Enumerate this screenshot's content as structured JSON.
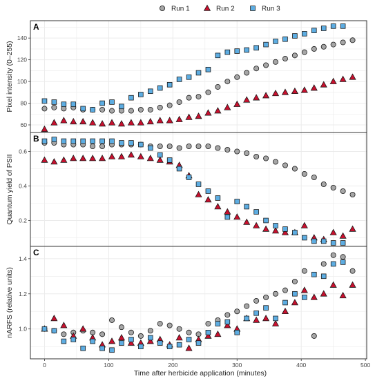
{
  "chart_data": {
    "type": "scatter",
    "xlabel": "Time after herbicide application (minutes)",
    "xlim": [
      -22,
      502
    ],
    "xticks": [
      0,
      100,
      200,
      300,
      400,
      500
    ],
    "legend": {
      "position": "top",
      "entries": [
        {
          "name": "Run 1",
          "color": "#a6a6a6",
          "marker": "circle"
        },
        {
          "name": "Run 2",
          "color": "#c8102e",
          "marker": "triangle"
        },
        {
          "name": "Run 3",
          "color": "#5dade2",
          "marker": "square"
        }
      ]
    },
    "panels": [
      {
        "letter": "A",
        "ylabel": "Pixel intensity  (0–255)",
        "ylim": [
          53,
          156
        ],
        "yticks": [
          60,
          80,
          100,
          120,
          140
        ],
        "series": [
          {
            "name": "Run 1",
            "marker": "circle",
            "x": [
              0,
              15,
              30,
              45,
              60,
              75,
              90,
              105,
              120,
              135,
              150,
              165,
              180,
              195,
              210,
              225,
              240,
              255,
              270,
              285,
              300,
              315,
              330,
              345,
              360,
              375,
              390,
              405,
              420,
              435,
              450,
              465,
              480
            ],
            "y": [
              75,
              76,
              75,
              76,
              74,
              74,
              74,
              73,
              73,
              73,
              74,
              74,
              76,
              78,
              81,
              85,
              86,
              90,
              95,
              100,
              104,
              108,
              112,
              115,
              118,
              121,
              124,
              127,
              130,
              132,
              134,
              136,
              138
            ]
          },
          {
            "name": "Run 2",
            "marker": "triangle",
            "x": [
              0,
              15,
              30,
              45,
              60,
              75,
              90,
              105,
              120,
              135,
              150,
              165,
              180,
              195,
              210,
              225,
              240,
              255,
              270,
              285,
              300,
              315,
              330,
              345,
              360,
              375,
              390,
              405,
              420,
              435,
              450,
              465,
              480
            ],
            "y": [
              56,
              62,
              64,
              63,
              63,
              62,
              61,
              62,
              61,
              62,
              62,
              63,
              64,
              64,
              65,
              67,
              68,
              71,
              73,
              76,
              79,
              83,
              85,
              87,
              89,
              90,
              91,
              92,
              94,
              97,
              100,
              102,
              104
            ]
          },
          {
            "name": "Run 3",
            "marker": "square",
            "x": [
              0,
              15,
              30,
              45,
              60,
              75,
              90,
              105,
              120,
              135,
              150,
              165,
              180,
              195,
              210,
              225,
              240,
              255,
              270,
              285,
              300,
              315,
              330,
              345,
              360,
              375,
              390,
              405,
              420,
              435,
              450,
              465
            ],
            "y": [
              82,
              81,
              79,
              79,
              75,
              74,
              80,
              81,
              77,
              85,
              88,
              91,
              94,
              97,
              102,
              104,
              108,
              111,
              124,
              127,
              128,
              129,
              131,
              134,
              137,
              139,
              142,
              144,
              147,
              149,
              151,
              151
            ]
          }
        ]
      },
      {
        "letter": "B",
        "ylabel": "Quantum yield of PSII",
        "ylim": [
          0.05,
          0.71
        ],
        "yticks": [
          0.2,
          0.4,
          0.6
        ],
        "series": [
          {
            "name": "Run 1",
            "marker": "circle",
            "x": [
              0,
              15,
              30,
              45,
              60,
              75,
              90,
              105,
              120,
              135,
              150,
              165,
              180,
              195,
              210,
              225,
              240,
              255,
              270,
              285,
              300,
              315,
              330,
              345,
              360,
              375,
              390,
              405,
              420,
              435,
              450,
              465,
              480
            ],
            "y": [
              0.65,
              0.65,
              0.64,
              0.64,
              0.64,
              0.63,
              0.63,
              0.64,
              0.64,
              0.64,
              0.64,
              0.63,
              0.63,
              0.63,
              0.62,
              0.63,
              0.63,
              0.63,
              0.62,
              0.61,
              0.6,
              0.59,
              0.57,
              0.56,
              0.54,
              0.52,
              0.5,
              0.47,
              0.45,
              0.41,
              0.39,
              0.37,
              0.35
            ]
          },
          {
            "name": "Run 2",
            "marker": "triangle",
            "x": [
              0,
              15,
              30,
              45,
              60,
              75,
              90,
              105,
              120,
              135,
              150,
              165,
              180,
              195,
              210,
              225,
              240,
              255,
              270,
              285,
              300,
              315,
              330,
              345,
              360,
              375,
              390,
              405,
              420,
              435,
              450,
              465,
              480
            ],
            "y": [
              0.55,
              0.54,
              0.55,
              0.56,
              0.56,
              0.56,
              0.56,
              0.57,
              0.57,
              0.58,
              0.57,
              0.56,
              0.55,
              0.54,
              0.52,
              0.46,
              0.35,
              0.32,
              0.28,
              0.25,
              0.22,
              0.19,
              0.17,
              0.15,
              0.14,
              0.13,
              0.13,
              0.17,
              0.1,
              0.09,
              0.13,
              0.11,
              0.15
            ]
          },
          {
            "name": "Run 3",
            "marker": "square",
            "x": [
              0,
              15,
              30,
              45,
              60,
              75,
              90,
              105,
              120,
              135,
              150,
              165,
              180,
              195,
              210,
              225,
              240,
              255,
              270,
              285,
              300,
              315,
              330,
              345,
              360,
              375,
              390,
              405,
              420,
              435,
              450,
              465
            ],
            "y": [
              0.66,
              0.67,
              0.66,
              0.66,
              0.66,
              0.66,
              0.66,
              0.66,
              0.65,
              0.65,
              0.64,
              0.62,
              0.58,
              0.55,
              0.5,
              0.45,
              0.41,
              0.37,
              0.33,
              0.22,
              0.31,
              0.28,
              0.25,
              0.2,
              0.17,
              0.15,
              0.13,
              0.1,
              0.08,
              0.08,
              0.07,
              0.07
            ]
          }
        ]
      },
      {
        "letter": "C",
        "ylabel": "nARFS (relative units)",
        "ylim": [
          0.83,
          1.47
        ],
        "yticks": [
          1.0,
          1.2,
          1.4
        ],
        "series": [
          {
            "name": "Run 1",
            "marker": "circle",
            "x": [
              0,
              15,
              30,
              45,
              60,
              75,
              90,
              105,
              120,
              135,
              150,
              165,
              180,
              195,
              210,
              225,
              240,
              255,
              270,
              285,
              300,
              315,
              330,
              345,
              360,
              375,
              390,
              405,
              420,
              435,
              450,
              465,
              480
            ],
            "y": [
              1.0,
              0.99,
              0.97,
              0.98,
              0.99,
              0.98,
              0.97,
              1.05,
              1.01,
              0.98,
              0.96,
              0.99,
              1.03,
              1.02,
              1.0,
              0.98,
              0.97,
              1.03,
              1.05,
              1.08,
              1.1,
              1.13,
              1.16,
              1.18,
              1.2,
              1.22,
              1.27,
              1.33,
              0.96,
              1.37,
              1.42,
              1.41,
              1.33
            ]
          },
          {
            "name": "Run 2",
            "marker": "triangle",
            "x": [
              0,
              15,
              30,
              45,
              60,
              75,
              90,
              105,
              120,
              135,
              150,
              165,
              180,
              195,
              210,
              225,
              240,
              255,
              270,
              285,
              300,
              315,
              330,
              345,
              360,
              375,
              390,
              405,
              420,
              435,
              450,
              465,
              480
            ],
            "y": [
              1.0,
              1.06,
              1.02,
              0.96,
              1.0,
              0.95,
              0.91,
              0.93,
              0.95,
              0.92,
              0.92,
              0.93,
              0.94,
              0.91,
              0.95,
              0.89,
              0.94,
              0.96,
              0.97,
              1.02,
              1.0,
              1.06,
              1.05,
              1.06,
              1.03,
              1.1,
              1.15,
              1.22,
              1.18,
              1.2,
              1.25,
              1.19,
              1.25
            ]
          },
          {
            "name": "Run 3",
            "marker": "square",
            "x": [
              0,
              15,
              30,
              45,
              60,
              75,
              90,
              105,
              120,
              135,
              150,
              165,
              180,
              195,
              210,
              225,
              240,
              255,
              270,
              285,
              300,
              315,
              330,
              345,
              360,
              375,
              390,
              405,
              420,
              435,
              450,
              465
            ],
            "y": [
              1.0,
              0.99,
              0.93,
              0.94,
              0.89,
              0.93,
              0.89,
              0.88,
              0.92,
              0.94,
              0.9,
              0.95,
              0.92,
              0.9,
              0.91,
              0.94,
              0.92,
              0.98,
              1.03,
              1.04,
              0.98,
              1.06,
              1.09,
              1.12,
              1.06,
              1.15,
              1.2,
              1.18,
              1.31,
              1.3,
              1.37,
              1.38
            ]
          }
        ]
      }
    ]
  }
}
